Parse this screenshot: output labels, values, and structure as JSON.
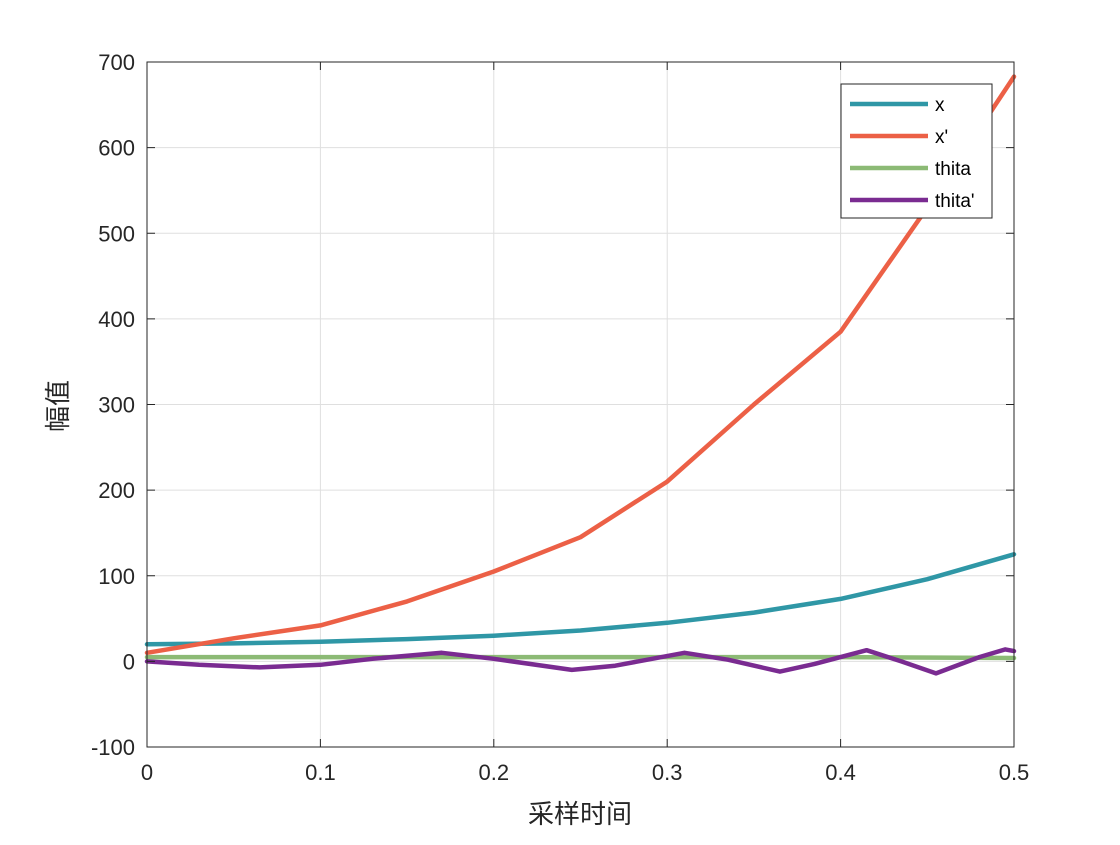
{
  "chart_data": {
    "type": "line",
    "title": "",
    "xlabel": "采样时间",
    "ylabel": "幅值",
    "xlim": [
      0,
      0.5
    ],
    "ylim": [
      -100,
      700
    ],
    "xticks": [
      0,
      0.1,
      0.2,
      0.3,
      0.4,
      0.5
    ],
    "xtick_labels": [
      "0",
      "0.1",
      "0.2",
      "0.3",
      "0.4",
      "0.5"
    ],
    "yticks": [
      -100,
      0,
      100,
      200,
      300,
      400,
      500,
      600,
      700
    ],
    "ytick_labels": [
      "-100",
      "0",
      "100",
      "200",
      "300",
      "400",
      "500",
      "600",
      "700"
    ],
    "grid": true,
    "legend_position": "top-right",
    "series": [
      {
        "name": "x",
        "color": "#2f97a6",
        "x": [
          0,
          0.05,
          0.1,
          0.15,
          0.2,
          0.25,
          0.3,
          0.35,
          0.4,
          0.45,
          0.5
        ],
        "y": [
          20,
          21,
          23,
          26,
          30,
          36,
          45,
          57,
          73,
          96,
          125
        ]
      },
      {
        "name": "x'",
        "color": "#ec6046",
        "x": [
          0,
          0.05,
          0.1,
          0.15,
          0.2,
          0.25,
          0.3,
          0.35,
          0.4,
          0.45,
          0.5
        ],
        "y": [
          10,
          27,
          42,
          70,
          105,
          145,
          210,
          300,
          385,
          530,
          683
        ]
      },
      {
        "name": "thita",
        "color": "#8cba75",
        "x": [
          0,
          0.1,
          0.2,
          0.3,
          0.4,
          0.5
        ],
        "y": [
          5,
          5,
          5,
          5,
          5,
          4
        ]
      },
      {
        "name": "thita'",
        "color": "#7a2b91",
        "x": [
          0,
          0.03,
          0.065,
          0.1,
          0.13,
          0.17,
          0.2,
          0.245,
          0.27,
          0.31,
          0.335,
          0.365,
          0.385,
          0.415,
          0.435,
          0.455,
          0.48,
          0.495,
          0.5
        ],
        "y": [
          0,
          -4,
          -7,
          -4,
          3,
          10,
          3,
          -10,
          -5,
          10,
          2,
          -12,
          -3,
          13,
          0,
          -14,
          5,
          14,
          12
        ]
      }
    ]
  }
}
